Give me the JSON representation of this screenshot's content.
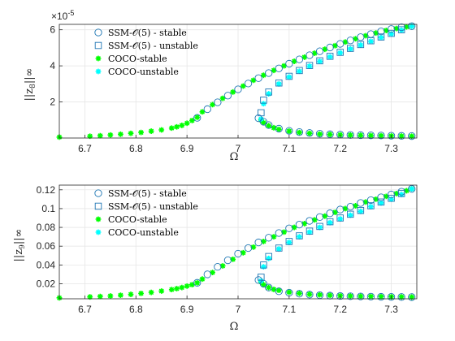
{
  "colors": {
    "ssm": "#1f77b4",
    "coco_stable": "#00ff00",
    "coco_unstable": "#00ffff",
    "axis": "#262626",
    "grid": "#e6e6e6"
  },
  "chart_data": [
    {
      "type": "scatter",
      "title": "",
      "xlabel": "Ω",
      "ylabel": "||z8||∞",
      "ylabel_main": "||z",
      "ylabel_sub": "8",
      "ylabel_end": "||∞",
      "exponent_label": "×10",
      "exponent_power": "-5",
      "xlim": [
        6.65,
        7.35
      ],
      "ylim": [
        0,
        6.3
      ],
      "grid": true,
      "legend_position": "top-left",
      "x_ticks": [
        "6.7",
        "6.8",
        "6.9",
        "7",
        "7.1",
        "7.2",
        "7.3"
      ],
      "x_tick_values": [
        6.7,
        6.8,
        6.9,
        7.0,
        7.1,
        7.2,
        7.3
      ],
      "y_ticks": [
        "2",
        "4",
        "6"
      ],
      "y_tick_values": [
        2,
        4,
        6
      ],
      "legend": [
        "SSM-𝒪(5) - stable",
        "SSM-𝒪(5) - unstable",
        "COCO-stable",
        "COCO-unstable"
      ],
      "series": [
        {
          "name": "COCO-stable",
          "marker": "asterisk",
          "x": [
            6.65,
            6.71,
            6.73,
            6.75,
            6.77,
            6.79,
            6.81,
            6.83,
            6.85,
            6.87,
            6.88,
            6.89,
            6.9,
            6.91,
            6.92,
            6.93,
            6.95,
            6.97,
            6.99,
            7.01,
            7.03,
            7.05,
            7.07,
            7.09,
            7.11,
            7.13,
            7.15,
            7.17,
            7.19,
            7.21,
            7.23,
            7.25,
            7.27,
            7.29,
            7.31,
            7.33,
            7.34
          ],
          "y": [
            0.05,
            0.1,
            0.13,
            0.17,
            0.21,
            0.26,
            0.31,
            0.38,
            0.45,
            0.55,
            0.62,
            0.7,
            0.82,
            0.97,
            1.15,
            1.45,
            1.85,
            2.2,
            2.55,
            2.88,
            3.2,
            3.48,
            3.75,
            4.0,
            4.25,
            4.48,
            4.7,
            4.92,
            5.12,
            5.32,
            5.5,
            5.67,
            5.82,
            5.96,
            6.07,
            6.16,
            6.2
          ]
        },
        {
          "name": "COCO-stable lower branch",
          "marker": "asterisk",
          "x": [
            7.045,
            7.05,
            7.06,
            7.07,
            7.08,
            7.1,
            7.12,
            7.14,
            7.16,
            7.18,
            7.2,
            7.22,
            7.24,
            7.26,
            7.28,
            7.3,
            7.32,
            7.34
          ],
          "y": [
            1.0,
            0.85,
            0.68,
            0.57,
            0.48,
            0.38,
            0.31,
            0.26,
            0.22,
            0.2,
            0.18,
            0.16,
            0.15,
            0.14,
            0.13,
            0.12,
            0.11,
            0.1
          ]
        },
        {
          "name": "COCO-unstable",
          "marker": "asterisk",
          "x": [
            7.045,
            7.05,
            7.06,
            7.08,
            7.1,
            7.12,
            7.14,
            7.16,
            7.18,
            7.2,
            7.22,
            7.24,
            7.26,
            7.28,
            7.3,
            7.32,
            7.34
          ],
          "y": [
            1.05,
            1.9,
            2.45,
            3.0,
            3.38,
            3.7,
            3.98,
            4.25,
            4.5,
            4.72,
            4.94,
            5.15,
            5.36,
            5.57,
            5.77,
            5.98,
            6.2
          ]
        },
        {
          "name": "SSM-𝒪(5) - stable",
          "marker": "circle",
          "x": [
            6.92,
            6.94,
            6.96,
            6.98,
            7.0,
            7.02,
            7.04,
            7.06,
            7.08,
            7.1,
            7.12,
            7.14,
            7.16,
            7.18,
            7.2,
            7.22,
            7.24,
            7.26,
            7.28,
            7.3,
            7.32,
            7.34,
            7.04,
            7.05,
            7.06,
            7.08,
            7.1,
            7.12,
            7.14,
            7.16,
            7.18,
            7.2,
            7.22,
            7.24,
            7.26,
            7.28,
            7.3,
            7.32,
            7.34
          ],
          "y": [
            1.12,
            1.6,
            1.98,
            2.35,
            2.7,
            3.02,
            3.32,
            3.6,
            3.86,
            4.12,
            4.36,
            4.59,
            4.81,
            5.02,
            5.22,
            5.41,
            5.59,
            5.76,
            5.91,
            6.04,
            6.14,
            6.2,
            1.1,
            0.9,
            0.72,
            0.52,
            0.4,
            0.33,
            0.28,
            0.24,
            0.21,
            0.19,
            0.17,
            0.16,
            0.15,
            0.14,
            0.13,
            0.12,
            0.11
          ]
        },
        {
          "name": "SSM-𝒪(5) - unstable",
          "marker": "square",
          "x": [
            7.045,
            7.05,
            7.06,
            7.08,
            7.1,
            7.12,
            7.14,
            7.16,
            7.18,
            7.2,
            7.22,
            7.24,
            7.26,
            7.28,
            7.3,
            7.32
          ],
          "y": [
            1.4,
            2.1,
            2.55,
            3.05,
            3.42,
            3.74,
            4.02,
            4.28,
            4.53,
            4.75,
            4.97,
            5.18,
            5.39,
            5.6,
            5.8,
            6.0
          ]
        }
      ]
    },
    {
      "type": "scatter",
      "title": "",
      "xlabel": "Ω",
      "ylabel": "||z9||∞",
      "ylabel_main": "||z",
      "ylabel_sub": "9",
      "ylabel_end": "||∞",
      "xlim": [
        6.65,
        7.35
      ],
      "ylim": [
        0.004,
        0.125
      ],
      "grid": true,
      "legend_position": "top-left",
      "x_ticks": [
        "6.7",
        "6.8",
        "6.9",
        "7",
        "7.1",
        "7.2",
        "7.3"
      ],
      "x_tick_values": [
        6.7,
        6.8,
        6.9,
        7.0,
        7.1,
        7.2,
        7.3
      ],
      "y_ticks": [
        "0.02",
        "0.04",
        "0.06",
        "0.08",
        "0.1",
        "0.12"
      ],
      "y_tick_values": [
        0.02,
        0.04,
        0.06,
        0.08,
        0.1,
        0.12
      ],
      "legend": [
        "SSM-𝒪(5) - stable",
        "SSM-𝒪(5) - unstable",
        "COCO-stable",
        "COCO-unstable"
      ],
      "series": [
        {
          "name": "COCO-stable",
          "marker": "asterisk",
          "x": [
            6.65,
            6.71,
            6.73,
            6.75,
            6.77,
            6.79,
            6.81,
            6.83,
            6.85,
            6.87,
            6.88,
            6.89,
            6.9,
            6.91,
            6.92,
            6.93,
            6.95,
            6.97,
            6.99,
            7.01,
            7.03,
            7.05,
            7.07,
            7.09,
            7.11,
            7.13,
            7.15,
            7.17,
            7.19,
            7.21,
            7.23,
            7.25,
            7.27,
            7.29,
            7.31,
            7.33,
            7.34
          ],
          "y": [
            0.005,
            0.006,
            0.0065,
            0.007,
            0.0078,
            0.0087,
            0.0097,
            0.0108,
            0.0122,
            0.0138,
            0.0148,
            0.016,
            0.0175,
            0.019,
            0.021,
            0.025,
            0.032,
            0.039,
            0.046,
            0.053,
            0.059,
            0.065,
            0.07,
            0.075,
            0.08,
            0.084,
            0.088,
            0.092,
            0.096,
            0.1,
            0.103,
            0.107,
            0.11,
            0.113,
            0.116,
            0.119,
            0.121
          ]
        },
        {
          "name": "COCO-stable lower branch",
          "marker": "asterisk",
          "x": [
            7.045,
            7.05,
            7.06,
            7.07,
            7.08,
            7.1,
            7.12,
            7.14,
            7.16,
            7.18,
            7.2,
            7.22,
            7.24,
            7.26,
            7.28,
            7.3,
            7.32,
            7.34
          ],
          "y": [
            0.022,
            0.019,
            0.016,
            0.014,
            0.013,
            0.011,
            0.0098,
            0.0088,
            0.0082,
            0.0077,
            0.0073,
            0.007,
            0.0067,
            0.0065,
            0.0063,
            0.0061,
            0.006,
            0.0058
          ]
        },
        {
          "name": "COCO-unstable",
          "marker": "asterisk",
          "x": [
            7.045,
            7.05,
            7.06,
            7.08,
            7.1,
            7.12,
            7.14,
            7.16,
            7.18,
            7.2,
            7.22,
            7.24,
            7.26,
            7.28,
            7.3,
            7.32,
            7.34
          ],
          "y": [
            0.023,
            0.038,
            0.047,
            0.057,
            0.064,
            0.07,
            0.075,
            0.08,
            0.085,
            0.089,
            0.093,
            0.097,
            0.102,
            0.106,
            0.11,
            0.115,
            0.121
          ]
        },
        {
          "name": "SSM-𝒪(5) - stable",
          "marker": "circle",
          "x": [
            6.92,
            6.94,
            6.96,
            6.98,
            7.0,
            7.02,
            7.04,
            7.06,
            7.08,
            7.1,
            7.12,
            7.14,
            7.16,
            7.18,
            7.2,
            7.22,
            7.24,
            7.26,
            7.28,
            7.3,
            7.32,
            7.34,
            7.04,
            7.05,
            7.06,
            7.08,
            7.1,
            7.12,
            7.14,
            7.16,
            7.18,
            7.2,
            7.22,
            7.24,
            7.26,
            7.28,
            7.3,
            7.32,
            7.34
          ],
          "y": [
            0.021,
            0.03,
            0.038,
            0.045,
            0.052,
            0.058,
            0.064,
            0.069,
            0.074,
            0.079,
            0.083,
            0.087,
            0.091,
            0.095,
            0.099,
            0.102,
            0.106,
            0.109,
            0.112,
            0.115,
            0.118,
            0.121,
            0.024,
            0.02,
            0.016,
            0.012,
            0.0105,
            0.0094,
            0.0085,
            0.0079,
            0.0074,
            0.007,
            0.0067,
            0.0065,
            0.0063,
            0.0061,
            0.006,
            0.0059,
            0.0058
          ]
        },
        {
          "name": "SSM-𝒪(5) - unstable",
          "marker": "square",
          "x": [
            7.045,
            7.05,
            7.06,
            7.08,
            7.1,
            7.12,
            7.14,
            7.16,
            7.18,
            7.2,
            7.22,
            7.24,
            7.26,
            7.28,
            7.3,
            7.32
          ],
          "y": [
            0.027,
            0.04,
            0.049,
            0.058,
            0.065,
            0.071,
            0.076,
            0.081,
            0.086,
            0.09,
            0.094,
            0.098,
            0.103,
            0.107,
            0.111,
            0.116
          ]
        }
      ]
    }
  ]
}
